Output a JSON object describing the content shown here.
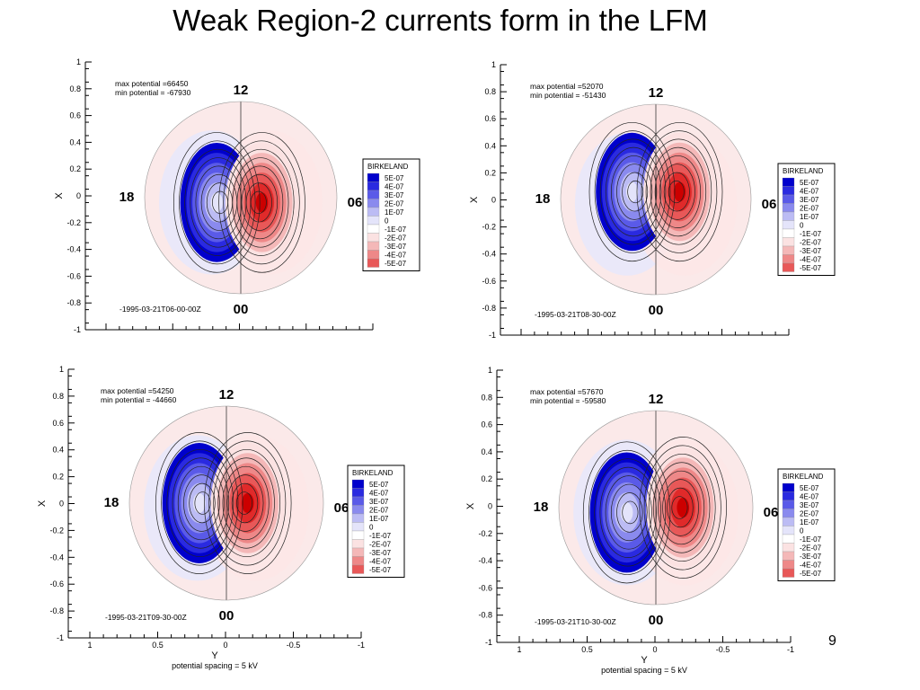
{
  "slide": {
    "title": "Weak Region-2 currents form in the LFM",
    "page_number": "9"
  },
  "chart_data": [
    {
      "type": "heatmap",
      "title": "",
      "xlabel": "",
      "ylabel": "X",
      "y_ticks": [
        "1",
        "0.8",
        "0.6",
        "0.4",
        "0.2",
        "0",
        "-0.2",
        "-0.4",
        "-0.6",
        "-0.8",
        "-1"
      ],
      "x_ticks": [],
      "xlim": [
        1,
        -1
      ],
      "ylim": [
        -1,
        1
      ],
      "max_potential_text": "max potential =66450",
      "min_potential_text": "min potential = -67930",
      "timestamp": "-1995-03-21T06-00-00Z",
      "mlt_labels": {
        "top": "12",
        "left": "18",
        "right": "06",
        "bottom": "00"
      },
      "upward_center": [
        0.22,
        -0.05
      ],
      "downward_center": [
        -0.25,
        -0.05
      ],
      "legend": {
        "title": "BIRKELAND",
        "levels": [
          "5E-07",
          "4E-07",
          "3E-07",
          "2E-07",
          "1E-07",
          "0",
          "-1E-07",
          "-2E-07",
          "-3E-07",
          "-4E-07",
          "-5E-07"
        ]
      }
    },
    {
      "type": "heatmap",
      "title": "",
      "xlabel": "",
      "ylabel": "X",
      "y_ticks": [
        "1",
        "0.8",
        "0.6",
        "0.4",
        "0.2",
        "0",
        "-0.2",
        "-0.4",
        "-0.6",
        "-0.8",
        "-1"
      ],
      "x_ticks": [],
      "xlim": [
        1,
        -1
      ],
      "ylim": [
        -1,
        1
      ],
      "max_potential_text": "max potential =52070",
      "min_potential_text": "min potential = -51430",
      "timestamp": "-1995-03-21T08-30-00Z",
      "mlt_labels": {
        "top": "12",
        "left": "18",
        "right": "06",
        "bottom": "00"
      },
      "upward_center": [
        0.25,
        0.08
      ],
      "downward_center": [
        -0.25,
        0.08
      ],
      "legend": {
        "title": "BIRKELAND",
        "levels": [
          "5E-07",
          "4E-07",
          "3E-07",
          "2E-07",
          "1E-07",
          "0",
          "-1E-07",
          "-2E-07",
          "-3E-07",
          "-4E-07",
          "-5E-07"
        ]
      }
    },
    {
      "type": "heatmap",
      "title": "",
      "xlabel": "Y",
      "ylabel": "X",
      "y_ticks": [
        "1",
        "0.8",
        "0.6",
        "0.4",
        "0.2",
        "0",
        "-0.2",
        "-0.4",
        "-0.6",
        "-0.8",
        "-1"
      ],
      "x_ticks": [
        "1",
        "0.5",
        "0",
        "-0.5",
        "-1"
      ],
      "xlim": [
        1,
        -1
      ],
      "ylim": [
        -1,
        1
      ],
      "max_potential_text": "max potential =54250",
      "min_potential_text": "min potential = -44660",
      "timestamp": "-1995-03-21T09-30-00Z",
      "footnote": "potential spacing = 5 kV",
      "mlt_labels": {
        "top": "12",
        "left": "18",
        "right": "06",
        "bottom": "00"
      },
      "upward_center": [
        0.22,
        0.0
      ],
      "downward_center": [
        -0.28,
        0.0
      ],
      "legend": {
        "title": "BIRKELAND",
        "levels": [
          "5E-07",
          "4E-07",
          "3E-07",
          "2E-07",
          "1E-07",
          "0",
          "-1E-07",
          "-2E-07",
          "-3E-07",
          "-4E-07",
          "-5E-07"
        ]
      }
    },
    {
      "type": "heatmap",
      "title": "",
      "xlabel": "Y",
      "ylabel": "X",
      "y_ticks": [
        "1",
        "0.8",
        "0.6",
        "0.4",
        "0.2",
        "0",
        "-0.2",
        "-0.4",
        "-0.6",
        "-0.8",
        "-1"
      ],
      "x_ticks": [
        "1",
        "0.5",
        "0",
        "-0.5",
        "-1"
      ],
      "xlim": [
        1,
        -1
      ],
      "ylim": [
        -1,
        1
      ],
      "max_potential_text": "max potential =57670",
      "min_potential_text": "min potential = -59580",
      "timestamp": "-1995-03-21T10-30-00Z",
      "footnote": "potential spacing = 5 kV",
      "mlt_labels": {
        "top": "12",
        "left": "18",
        "right": "06",
        "bottom": "00"
      },
      "upward_center": [
        0.28,
        0.0
      ],
      "downward_center": [
        -0.3,
        -0.05
      ],
      "legend": {
        "title": "BIRKELAND",
        "levels": [
          "5E-07",
          "4E-07",
          "3E-07",
          "2E-07",
          "1E-07",
          "0",
          "-1E-07",
          "-2E-07",
          "-3E-07",
          "-4E-07",
          "-5E-07"
        ]
      }
    }
  ],
  "colors": {
    "positive_scale": [
      "#0000cc",
      "#2a2ae0",
      "#5a5ae8",
      "#8a8aee",
      "#bcbcf4",
      "#e4e4fa"
    ],
    "zero": "#ffffff",
    "negative_scale": [
      "#fbe2e2",
      "#f4b8b8",
      "#ee8888",
      "#e85858",
      "#e02a2a",
      "#cc0000"
    ],
    "contour": "#222222"
  }
}
